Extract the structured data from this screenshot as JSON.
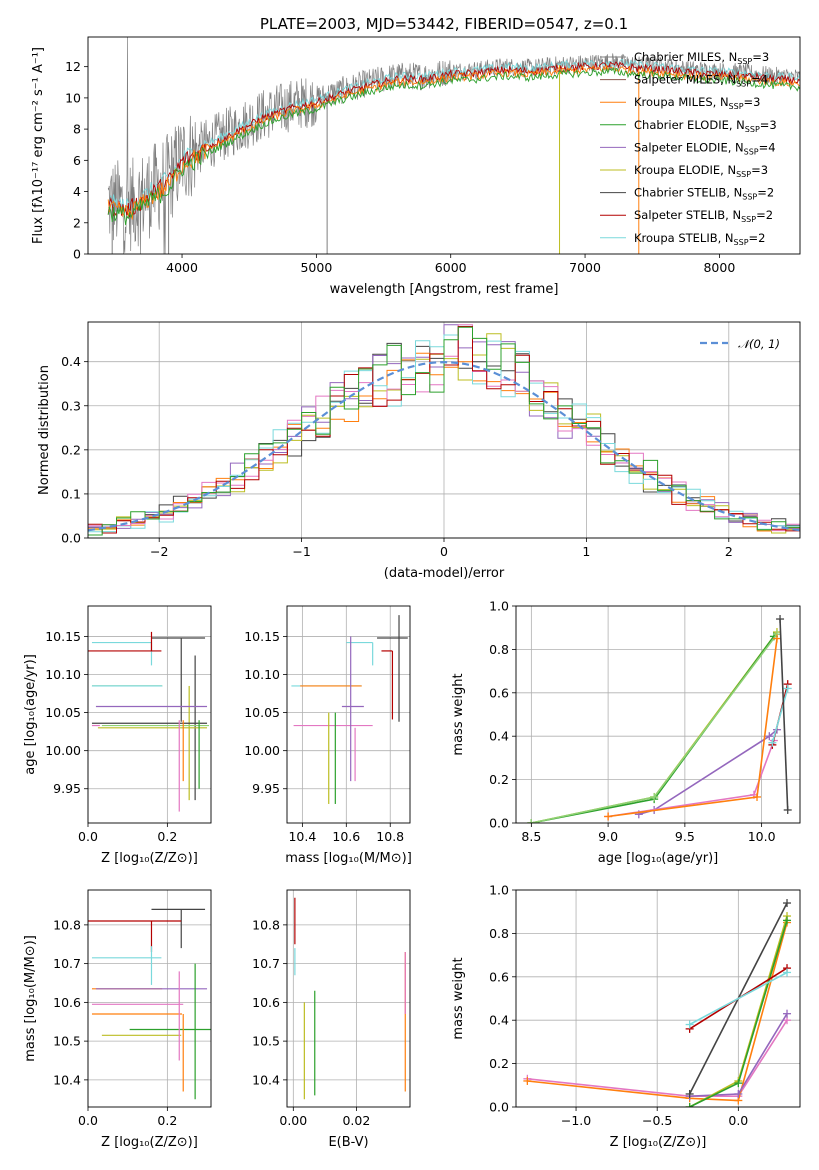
{
  "figure_title": "PLATE=2003, MJD=53442, FIBERID=0547, z=0.1",
  "series_colors": {
    "Chabrier MILES": "#7f7f7f",
    "Salpeter MILES": "#8c564b",
    "Kroupa MILES": "#ff7f0e",
    "Chabrier ELODIE": "#2ca02c",
    "Salpeter ELODIE": "#9467bd",
    "Kroupa ELODIE": "#bcbd22",
    "Chabrier STELIB": "#444444",
    "Salpeter STELIB": "#b30000",
    "Kroupa STELIB": "#7ad9dc",
    "extra_1": "#e377c2",
    "extra_2": "#8fd175"
  },
  "chart_data": [
    {
      "id": "spectrum",
      "type": "line",
      "title": "PLATE=2003, MJD=53442, FIBERID=0547, z=0.1",
      "xlabel": "wavelength [Angstrom, rest frame]",
      "ylabel": "Flux [fλ10⁻¹⁷ erg cm⁻² s⁻¹ A⁻¹]",
      "xlim": [
        3300,
        8600
      ],
      "ylim": [
        0,
        13.9
      ],
      "xticks": [
        4000,
        5000,
        6000,
        7000,
        8000
      ],
      "yticks": [
        0,
        2,
        4,
        6,
        8,
        10,
        12
      ],
      "grid": false,
      "legend_position": "right",
      "legend": [
        {
          "label": "Chabrier MILES, N",
          "sub": "SSP",
          "tail": "=3"
        },
        {
          "label": "Salpeter MILES, N",
          "sub": "SSP",
          "tail": "=4"
        },
        {
          "label": "Kroupa MILES, N",
          "sub": "SSP",
          "tail": "=3"
        },
        {
          "label": "Chabrier ELODIE, N",
          "sub": "SSP",
          "tail": "=3"
        },
        {
          "label": "Salpeter ELODIE, N",
          "sub": "SSP",
          "tail": "=4"
        },
        {
          "label": "Kroupa ELODIE, N",
          "sub": "SSP",
          "tail": "=3"
        },
        {
          "label": "Chabrier STELIB, N",
          "sub": "SSP",
          "tail": "=2"
        },
        {
          "label": "Salpeter STELIB, N",
          "sub": "SSP",
          "tail": "=2"
        },
        {
          "label": "Kroupa STELIB, N",
          "sub": "SSP",
          "tail": "=2"
        }
      ],
      "continuum_x": [
        3450,
        3600,
        3700,
        3800,
        3900,
        4000,
        4200,
        4400,
        4600,
        4800,
        5000,
        5200,
        5400,
        5600,
        5800,
        6000,
        6200,
        6400,
        6600,
        6800,
        7000,
        7200,
        7400,
        7600,
        7800,
        8000,
        8200,
        8400,
        8600
      ],
      "continuum_y": [
        3.3,
        3.0,
        3.6,
        4.2,
        4.8,
        6.1,
        7.1,
        8.0,
        8.9,
        9.5,
        9.9,
        10.5,
        11.0,
        11.4,
        11.4,
        11.7,
        11.8,
        12.0,
        11.9,
        12.1,
        12.2,
        12.3,
        12.1,
        12.0,
        11.8,
        11.7,
        11.6,
        11.4,
        11.3
      ]
    },
    {
      "id": "residuals",
      "type": "line",
      "xlabel": "(data-model)/error",
      "ylabel": "Normed distribution",
      "xlim": [
        -2.5,
        2.5
      ],
      "ylim": [
        0,
        0.49
      ],
      "xticks": [
        -2,
        -1,
        0,
        1,
        2
      ],
      "yticks": [
        0.0,
        0.1,
        0.2,
        0.3,
        0.4
      ],
      "grid": true,
      "legend_position": "top-right",
      "legend_label": "𝒩(0, 1)"
    },
    {
      "id": "age_vs_Z",
      "type": "scatter",
      "xlabel": "Z [log₁₀(Z/Z⊙)]",
      "ylabel": "age  [log₁₀(age/yr)]",
      "xlim": [
        0.0,
        0.31
      ],
      "ylim": [
        9.905,
        10.19
      ],
      "xticks": [
        0.0,
        0.2
      ],
      "yticks": [
        9.95,
        10.0,
        10.05,
        10.1,
        10.15
      ],
      "grid": true,
      "points": [
        {
          "x": 0.235,
          "y": 10.148,
          "xerr": [
            0.075,
            0.06
          ],
          "yerr": [
            0.11,
            0.0
          ],
          "color": "#444444"
        },
        {
          "x": 0.16,
          "y": 10.142,
          "xerr": [
            0.15,
            0.0
          ],
          "yerr": [
            0.03,
            0.0
          ],
          "color": "#7ad9dc"
        },
        {
          "x": 0.16,
          "y": 10.131,
          "xerr": [
            0.16,
            0.025
          ],
          "yerr": [
            0.0,
            0.025
          ],
          "color": "#b30000"
        },
        {
          "x": 0.087,
          "y": 10.085,
          "xerr": [
            0.077,
            0.1
          ],
          "yerr": [
            0.0,
            0.0
          ],
          "color": "#2ca02c"
        },
        {
          "x": 0.087,
          "y": 10.085,
          "xerr": [
            0.077,
            0.1
          ],
          "yerr": [
            0.0,
            0.0
          ],
          "color": "#7ad9dc"
        },
        {
          "x": 0.255,
          "y": 10.085,
          "xerr": [
            0.0,
            0.0
          ],
          "yerr": [
            0.15,
            0.0
          ],
          "color": "#bcbd22"
        },
        {
          "x": 0.27,
          "y": 10.085,
          "xerr": [
            0.0,
            0.0
          ],
          "yerr": [
            0.15,
            0.04
          ],
          "color": "#444444"
        },
        {
          "x": 0.105,
          "y": 10.058,
          "xerr": [
            0.085,
            0.195
          ],
          "yerr": [
            0.0,
            0.0
          ],
          "color": "#9467bd"
        },
        {
          "x": 0.105,
          "y": 10.036,
          "xerr": [
            0.095,
            0.195
          ],
          "yerr": [
            0.0,
            0.0
          ],
          "color": "#444444"
        },
        {
          "x": 0.03,
          "y": 10.033,
          "xerr": [
            0.02,
            0.0
          ],
          "yerr": [
            0.0,
            0.0
          ],
          "color": "#e377c2"
        },
        {
          "x": 0.035,
          "y": 10.033,
          "xerr": [
            0.0,
            0.27
          ],
          "yerr": [
            0.0,
            0.0
          ],
          "color": "#8fd175"
        },
        {
          "x": 0.17,
          "y": 10.03,
          "xerr": [
            0.145,
            0.13
          ],
          "yerr": [
            0.0,
            0.0
          ],
          "color": "#bcbd22"
        },
        {
          "x": 0.23,
          "y": 10.04,
          "xerr": [
            0.0,
            0.0
          ],
          "yerr": [
            0.12,
            0.0
          ],
          "color": "#e377c2"
        },
        {
          "x": 0.24,
          "y": 10.04,
          "xerr": [
            0.0,
            0.0
          ],
          "yerr": [
            0.08,
            0.0
          ],
          "color": "#ff7f0e"
        },
        {
          "x": 0.28,
          "y": 10.04,
          "xerr": [
            0.0,
            0.0
          ],
          "yerr": [
            0.09,
            0.0
          ],
          "color": "#2ca02c"
        }
      ]
    },
    {
      "id": "age_vs_mass",
      "type": "scatter",
      "xlabel": "mass [log₁₀(M/M⊙)]",
      "ylabel": "",
      "xlim": [
        10.33,
        10.89
      ],
      "ylim": [
        9.905,
        10.19
      ],
      "xticks": [
        10.4,
        10.6,
        10.8
      ],
      "yticks": [
        9.95,
        10.0,
        10.05,
        10.1,
        10.15
      ],
      "grid": true,
      "points": [
        {
          "x": 10.84,
          "y": 10.148,
          "xerr": [
            0.1,
            0.04
          ],
          "yerr": [
            0.11,
            0.03
          ],
          "color": "#444444"
        },
        {
          "x": 10.72,
          "y": 10.142,
          "xerr": [
            0.12,
            0.0
          ],
          "yerr": [
            0.03,
            0.0
          ],
          "color": "#7ad9dc"
        },
        {
          "x": 10.81,
          "y": 10.131,
          "xerr": [
            0.05,
            0.0
          ],
          "yerr": [
            0.09,
            0.0
          ],
          "color": "#b30000"
        },
        {
          "x": 10.55,
          "y": 10.085,
          "xerr": [
            0.2,
            0.12
          ],
          "yerr": [
            0.0,
            0.0
          ],
          "color": "#7ad9dc"
        },
        {
          "x": 10.55,
          "y": 10.085,
          "xerr": [
            0.16,
            0.12
          ],
          "yerr": [
            0.0,
            0.0
          ],
          "color": "#ff7f0e"
        },
        {
          "x": 10.58,
          "y": 10.058,
          "xerr": [
            0.0,
            0.1
          ],
          "yerr": [
            0.0,
            0.0
          ],
          "color": "#9467bd"
        },
        {
          "x": 10.48,
          "y": 10.033,
          "xerr": [
            0.12,
            0.24
          ],
          "yerr": [
            0.0,
            0.0
          ],
          "color": "#e377c2"
        },
        {
          "x": 10.52,
          "y": 10.05,
          "xerr": [
            0.0,
            0.0
          ],
          "yerr": [
            0.12,
            0.0
          ],
          "color": "#bcbd22"
        },
        {
          "x": 10.55,
          "y": 10.05,
          "xerr": [
            0.0,
            0.0
          ],
          "yerr": [
            0.12,
            0.0
          ],
          "color": "#2ca02c"
        },
        {
          "x": 10.62,
          "y": 10.05,
          "xerr": [
            0.0,
            0.0
          ],
          "yerr": [
            0.09,
            0.1
          ],
          "color": "#9467bd"
        },
        {
          "x": 10.64,
          "y": 10.03,
          "xerr": [
            0.0,
            0.0
          ],
          "yerr": [
            0.07,
            0.0
          ],
          "color": "#e377c2"
        }
      ]
    },
    {
      "id": "massweight_vs_age",
      "type": "line",
      "xlabel": "age  [log₁₀(age/yr)]",
      "ylabel": "mass weight",
      "xlim": [
        8.4,
        10.25
      ],
      "ylim": [
        0.0,
        1.0
      ],
      "xticks": [
        8.5,
        9.0,
        9.5,
        10.0
      ],
      "yticks": [
        0.0,
        0.2,
        0.4,
        0.6,
        0.8,
        1.0
      ],
      "grid": true,
      "series": [
        {
          "color": "#bcbd22",
          "x": [
            8.5,
            9.3,
            10.1
          ],
          "y": [
            0.0,
            0.12,
            0.88
          ]
        },
        {
          "color": "#2ca02c",
          "x": [
            8.5,
            9.3,
            10.08
          ],
          "y": [
            0.0,
            0.11,
            0.86
          ]
        },
        {
          "color": "#8fd175",
          "x": [
            8.5,
            9.3,
            10.1
          ],
          "y": [
            0.0,
            0.12,
            0.87
          ]
        },
        {
          "color": "#9467bd",
          "x": [
            9.2,
            9.3,
            10.05,
            10.1
          ],
          "y": [
            0.04,
            0.06,
            0.4,
            0.43
          ]
        },
        {
          "color": "#e377c2",
          "x": [
            9.0,
            9.95,
            10.08
          ],
          "y": [
            0.03,
            0.13,
            0.38
          ]
        },
        {
          "color": "#ff7f0e",
          "x": [
            9.0,
            9.97,
            10.1
          ],
          "y": [
            0.03,
            0.12,
            0.85
          ]
        },
        {
          "color": "#b30000",
          "x": [
            10.07,
            10.17
          ],
          "y": [
            0.36,
            0.64
          ]
        },
        {
          "color": "#7ad9dc",
          "x": [
            10.07,
            10.17
          ],
          "y": [
            0.37,
            0.62
          ]
        },
        {
          "color": "#444444",
          "x": [
            10.12,
            10.17
          ],
          "y": [
            0.94,
            0.06
          ]
        }
      ]
    },
    {
      "id": "mass_vs_Z",
      "type": "scatter",
      "xlabel": "Z [log₁₀(Z/Z⊙)]",
      "ylabel": "mass [log₁₀(M/M⊙)]",
      "xlim": [
        0.0,
        0.31
      ],
      "ylim": [
        10.33,
        10.89
      ],
      "xticks": [
        0.0,
        0.2
      ],
      "yticks": [
        10.4,
        10.5,
        10.6,
        10.7,
        10.8
      ],
      "grid": true,
      "points": [
        {
          "x": 0.235,
          "y": 10.84,
          "xerr": [
            0.075,
            0.06
          ],
          "yerr": [
            0.1,
            0.0
          ],
          "color": "#444444"
        },
        {
          "x": 0.16,
          "y": 10.81,
          "xerr": [
            0.16,
            0.075
          ],
          "yerr": [
            0.08,
            0.0
          ],
          "color": "#b30000"
        },
        {
          "x": 0.16,
          "y": 10.715,
          "xerr": [
            0.15,
            0.025
          ],
          "yerr": [
            0.07,
            0.03
          ],
          "color": "#7ad9dc"
        },
        {
          "x": 0.087,
          "y": 10.635,
          "xerr": [
            0.077,
            0.1
          ],
          "yerr": [
            0.0,
            0.0
          ],
          "color": "#ff7f0e"
        },
        {
          "x": 0.105,
          "y": 10.635,
          "xerr": [
            0.085,
            0.195
          ],
          "yerr": [
            0.0,
            0.0
          ],
          "color": "#9467bd"
        },
        {
          "x": 0.05,
          "y": 10.595,
          "xerr": [
            0.04,
            0.19
          ],
          "yerr": [
            0.0,
            0.0
          ],
          "color": "#e377c2"
        },
        {
          "x": 0.087,
          "y": 10.57,
          "xerr": [
            0.077,
            0.15
          ],
          "yerr": [
            0.0,
            0.0
          ],
          "color": "#ff7f0e"
        },
        {
          "x": 0.105,
          "y": 10.53,
          "xerr": [
            0.0,
            0.205
          ],
          "yerr": [
            0.0,
            0.0
          ],
          "color": "#2ca02c"
        },
        {
          "x": 0.035,
          "y": 10.515,
          "xerr": [
            0.0,
            0.2
          ],
          "yerr": [
            0.0,
            0.0
          ],
          "color": "#bcbd22"
        },
        {
          "x": 0.24,
          "y": 10.52,
          "xerr": [
            0.0,
            0.0
          ],
          "yerr": [
            0.15,
            0.05
          ],
          "color": "#ff7f0e"
        },
        {
          "x": 0.27,
          "y": 10.52,
          "xerr": [
            0.0,
            0.0
          ],
          "yerr": [
            0.17,
            0.18
          ],
          "color": "#2ca02c"
        },
        {
          "x": 0.23,
          "y": 10.58,
          "xerr": [
            0.0,
            0.0
          ],
          "yerr": [
            0.13,
            0.1
          ],
          "color": "#e377c2"
        }
      ]
    },
    {
      "id": "mass_vs_ebv",
      "type": "scatter",
      "xlabel": "E(B-V)",
      "ylabel": "",
      "xlim": [
        -0.002,
        0.037
      ],
      "ylim": [
        10.33,
        10.89
      ],
      "xticks": [
        0.0,
        0.02
      ],
      "yticks": [
        10.4,
        10.5,
        10.6,
        10.7,
        10.8
      ],
      "grid": true,
      "points": [
        {
          "x": 0.0005,
          "y": 10.81,
          "xerr": [
            0,
            0
          ],
          "yerr": [
            0.06,
            0.06
          ],
          "color": "#b30000"
        },
        {
          "x": 0.0005,
          "y": 10.71,
          "xerr": [
            0,
            0
          ],
          "yerr": [
            0.04,
            0.03
          ],
          "color": "#7ad9dc"
        },
        {
          "x": 0.0035,
          "y": 10.52,
          "xerr": [
            0,
            0
          ],
          "yerr": [
            0.17,
            0.08
          ],
          "color": "#bcbd22"
        },
        {
          "x": 0.0068,
          "y": 10.5,
          "xerr": [
            0,
            0
          ],
          "yerr": [
            0.14,
            0.13
          ],
          "color": "#2ca02c"
        },
        {
          "x": 0.0355,
          "y": 10.57,
          "xerr": [
            0,
            0
          ],
          "yerr": [
            0.2,
            0.16
          ],
          "color": "#ff7f0e"
        },
        {
          "x": 0.0355,
          "y": 10.62,
          "xerr": [
            0,
            0
          ],
          "yerr": [
            0.05,
            0.11
          ],
          "color": "#e377c2"
        }
      ]
    },
    {
      "id": "massweight_vs_Z",
      "type": "line",
      "xlabel": "Z [log₁₀(Z/Z⊙)]",
      "ylabel": "mass weight",
      "xlim": [
        -1.37,
        0.38
      ],
      "ylim": [
        0.0,
        1.0
      ],
      "xticks": [
        -1.0,
        -0.5,
        0.0
      ],
      "yticks": [
        0.0,
        0.2,
        0.4,
        0.6,
        0.8,
        1.0
      ],
      "grid": true,
      "series": [
        {
          "color": "#e377c2",
          "x": [
            -1.3,
            -0.3,
            0.0,
            0.3
          ],
          "y": [
            0.13,
            0.05,
            0.05,
            0.4
          ]
        },
        {
          "color": "#ff7f0e",
          "x": [
            -1.3,
            -0.3,
            0.0,
            0.3
          ],
          "y": [
            0.12,
            0.04,
            0.03,
            0.85
          ]
        },
        {
          "color": "#9467bd",
          "x": [
            -0.3,
            0.0,
            0.3
          ],
          "y": [
            0.05,
            0.06,
            0.43
          ]
        },
        {
          "color": "#bcbd22",
          "x": [
            -0.3,
            0.0,
            0.3
          ],
          "y": [
            0.0,
            0.12,
            0.88
          ]
        },
        {
          "color": "#2ca02c",
          "x": [
            -0.3,
            0.0,
            0.3
          ],
          "y": [
            0.0,
            0.11,
            0.86
          ]
        },
        {
          "color": "#444444",
          "x": [
            -0.3,
            0.3
          ],
          "y": [
            0.06,
            0.94
          ]
        },
        {
          "color": "#b30000",
          "x": [
            -0.3,
            0.3
          ],
          "y": [
            0.36,
            0.64
          ]
        },
        {
          "color": "#7ad9dc",
          "x": [
            -0.3,
            0.3
          ],
          "y": [
            0.38,
            0.62
          ]
        }
      ]
    }
  ]
}
